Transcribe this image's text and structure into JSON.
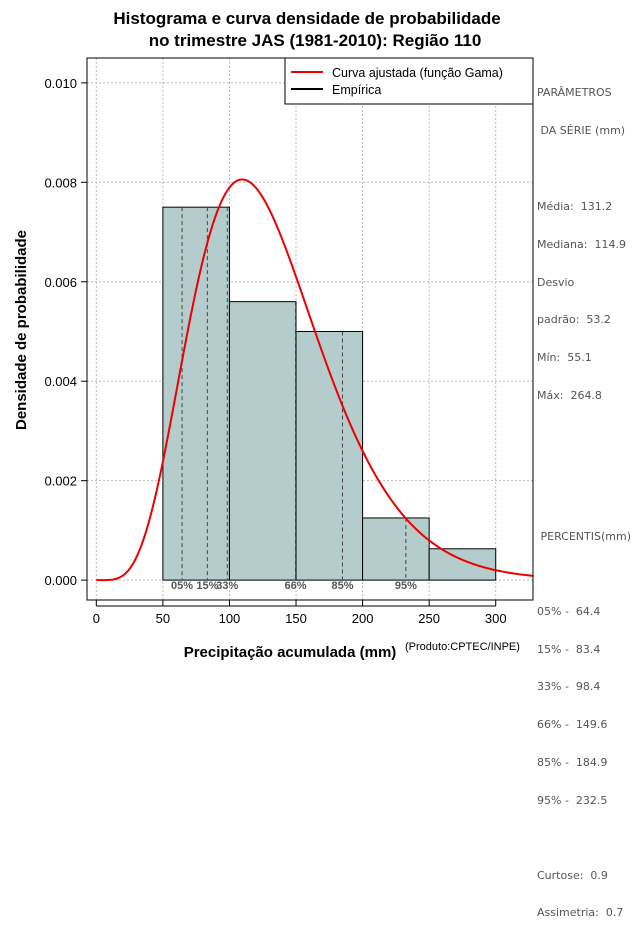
{
  "chart_data": {
    "type": "histogram",
    "title_line1": "Histograma e curva densidade de probabilidade",
    "title_line2": "no trimestre JAS (1981-2010): Região 110",
    "xlabel": "Precipitação acumulada (mm)",
    "ylabel": "Densidade de probabilidade",
    "credit": "(Produto:CPTEC/INPE)",
    "xlim": [
      -7,
      328
    ],
    "ylim": [
      -0.0004,
      0.0105
    ],
    "x_ticks": [
      0,
      50,
      100,
      150,
      200,
      250,
      300
    ],
    "y_ticks": [
      0.0,
      0.002,
      0.004,
      0.006,
      0.008,
      0.01
    ],
    "y_tick_labels": [
      "0.000",
      "0.002",
      "0.004",
      "0.006",
      "0.008",
      "0.010"
    ],
    "grid": true,
    "bins": [
      {
        "x0": 50,
        "x1": 100,
        "density": 0.0075
      },
      {
        "x0": 100,
        "x1": 150,
        "density": 0.0056
      },
      {
        "x0": 150,
        "x1": 200,
        "density": 0.005
      },
      {
        "x0": 200,
        "x1": 250,
        "density": 0.00125
      },
      {
        "x0": 250,
        "x1": 300,
        "density": 0.00063
      }
    ],
    "fitted_curve": {
      "distribution": "gamma",
      "shape": 6.06,
      "scale": 21.65,
      "color": "#ee0000"
    },
    "percentiles": [
      {
        "label": "05%",
        "value": 64.4
      },
      {
        "label": "15%",
        "value": 83.4
      },
      {
        "label": "33%",
        "value": 98.4
      },
      {
        "label": "66%",
        "value": 149.6
      },
      {
        "label": "85%",
        "value": 184.9
      },
      {
        "label": "95%",
        "value": 232.5
      }
    ],
    "legend": [
      {
        "label": "Curva ajustada (função Gama)",
        "color": "#ee0000"
      },
      {
        "label": "Empírica",
        "color": "#000000"
      }
    ],
    "legend_position": "top-right",
    "bar_color": "#b4cccc"
  },
  "params": {
    "header1": "PARÂMETROS",
    "header2": " DA SÉRIE (mm)",
    "media": "Média:  131.2",
    "mediana": "Mediana:  114.9",
    "desvio1": "Desvio",
    "desvio2": "padrão:  53.2",
    "min": "Mín:  55.1",
    "max": "Máx:  264.8",
    "pct_header": " PERCENTIS(mm)",
    "pct_rows": [
      "05% -  64.4",
      "15% -  83.4",
      "33% -  98.4",
      "66% -  149.6",
      "85% -  184.9",
      "95% -  232.5"
    ],
    "curtose": "Curtose:  0.9",
    "assimetria": "Assimetria:  0.7"
  }
}
